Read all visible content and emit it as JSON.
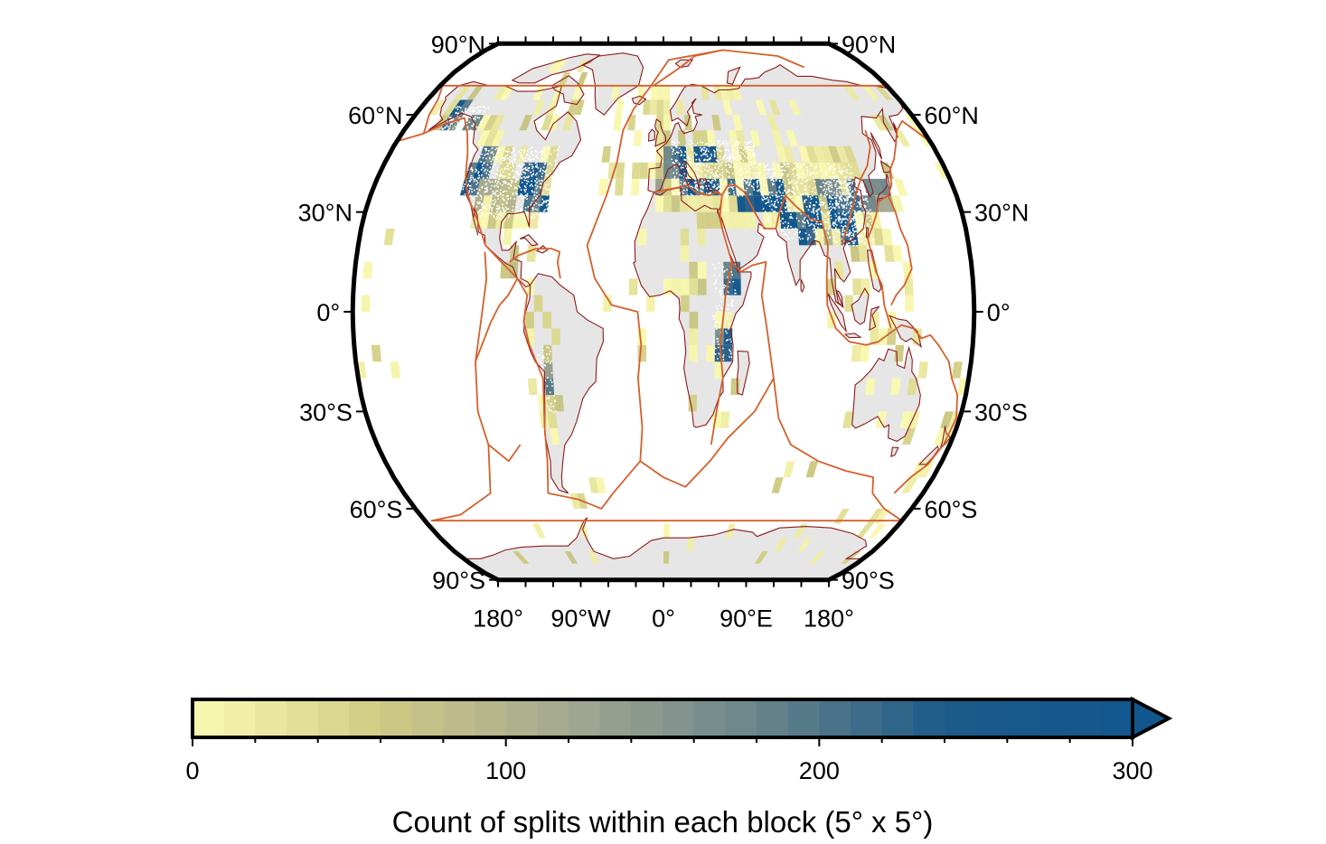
{
  "map": {
    "projection": "Robinson",
    "lat_labels": [
      {
        "value": 90,
        "text": "90°N"
      },
      {
        "value": 60,
        "text": "60°N"
      },
      {
        "value": 30,
        "text": "30°N"
      },
      {
        "value": 0,
        "text": "0°"
      },
      {
        "value": -30,
        "text": "30°S"
      },
      {
        "value": -60,
        "text": "60°S"
      },
      {
        "value": -90,
        "text": "90°S"
      }
    ],
    "lon_labels": [
      {
        "value": -180,
        "text": "180°"
      },
      {
        "value": -90,
        "text": "90°W"
      },
      {
        "value": 0,
        "text": "0°"
      },
      {
        "value": 90,
        "text": "90°E"
      },
      {
        "value": 180,
        "text": "180°"
      }
    ],
    "block_size_deg": 5,
    "colors": {
      "land": "#e6e6e6",
      "ocean": "#ffffff",
      "plate_boundaries": "#d4602c",
      "coastline": "#8b1a1a",
      "frame": "#000000",
      "station_dots": "#ffffff"
    },
    "layers": [
      "land",
      "count-blocks",
      "station-dots",
      "coastlines",
      "plate-boundaries",
      "frame"
    ]
  },
  "colorbar": {
    "title": "Count of splits within each block (5° x 5°)",
    "min": 0,
    "max": 300,
    "ticks": [
      {
        "value": 0,
        "text": "0"
      },
      {
        "value": 100,
        "text": "100"
      },
      {
        "value": 200,
        "text": "200"
      },
      {
        "value": 300,
        "text": "300"
      }
    ],
    "color_stops": [
      "#fbfab3",
      "#cfcb85",
      "#a3a890",
      "#6a858a",
      "#1d5a8a",
      "#11578d"
    ],
    "extend": "max"
  }
}
